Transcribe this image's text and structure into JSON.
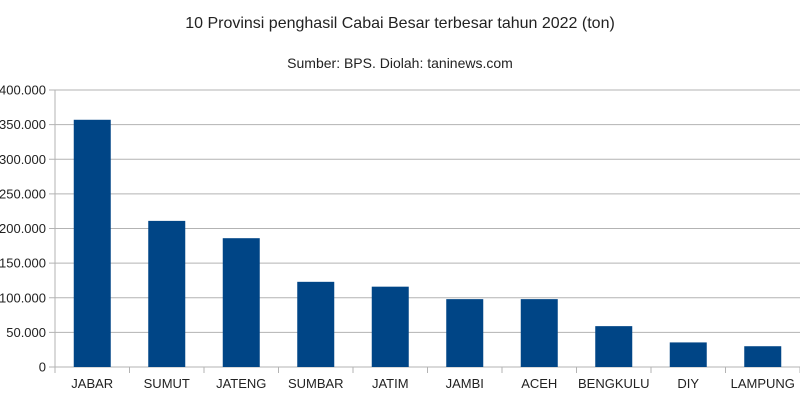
{
  "chart_data": {
    "type": "bar",
    "title": "10 Provinsi penghasil Cabai Besar terbesar tahun 2022 (ton)",
    "subtitle": "Sumber: BPS. Diolah: taninews.com",
    "xlabel": "",
    "ylabel": "",
    "categories": [
      "JABAR",
      "SUMUT",
      "JATENG",
      "SUMBAR",
      "JATIM",
      "JAMBI",
      "ACEH",
      "BENGKULU",
      "DIY",
      "LAMPUNG"
    ],
    "values": [
      357000,
      211000,
      186000,
      123000,
      116000,
      98000,
      98000,
      59000,
      35500,
      30000
    ],
    "ylim": [
      0,
      400000
    ],
    "yticks": [
      0,
      50000,
      100000,
      150000,
      200000,
      250000,
      300000,
      350000,
      400000
    ],
    "ytick_labels": [
      "0",
      "50.000",
      "100.000",
      "150.000",
      "200.000",
      "250.000",
      "300.000",
      "350.000",
      "400.000"
    ],
    "grid": true,
    "legend": null,
    "bar_color": "#004586"
  }
}
